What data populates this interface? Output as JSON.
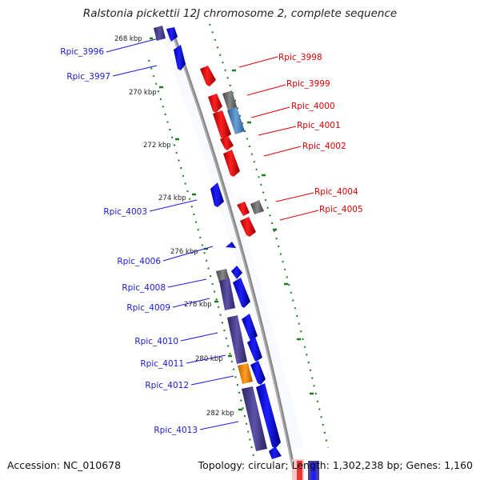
{
  "title": "Ralstonia pickettii 12J chromosome 2, complete sequence",
  "footer": {
    "accession": "Accession: NC_010678",
    "summary": "Topology: circular; Length: 1,302,238 bp; Genes: 1,160"
  },
  "colors": {
    "forward": "#0000ee",
    "reverse": "#ee0000",
    "rna": "#4a6fb0",
    "pseudo": "#666666",
    "cds_bar": "#4b3f8f",
    "orange": "#f08c00",
    "tick": "#1a7f1a",
    "backbone": "#888888",
    "label_forward": "#1a1ad8",
    "label_reverse": "#e00000"
  },
  "ticks": [
    "268 kbp",
    "270 kbp",
    "272 kbp",
    "274 kbp",
    "276 kbp",
    "278 kbp",
    "280 kbp",
    "282 kbp"
  ],
  "genes_left": [
    "Rpic_3996",
    "Rpic_3997",
    "Rpic_4003",
    "Rpic_4006",
    "Rpic_4008",
    "Rpic_4009",
    "Rpic_4010",
    "Rpic_4011",
    "Rpic_4012",
    "Rpic_4013"
  ],
  "genes_right": [
    "Rpic_3998",
    "Rpic_3999",
    "Rpic_4000",
    "Rpic_4001",
    "Rpic_4002",
    "Rpic_4004",
    "Rpic_4005"
  ]
}
